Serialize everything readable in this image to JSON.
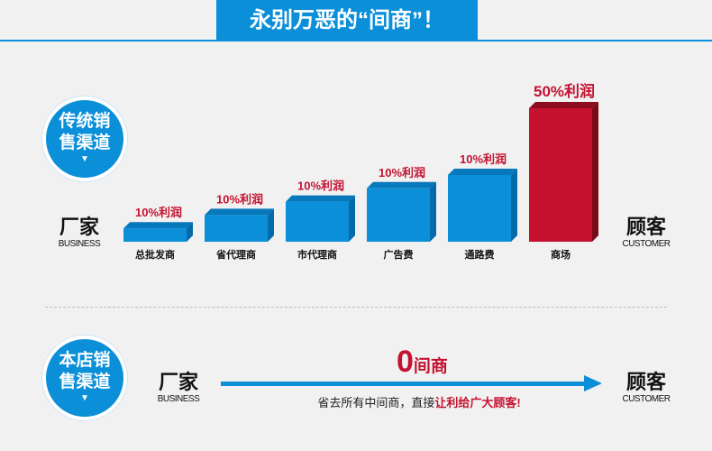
{
  "banner": {
    "title": "永别万恶的“间商”！"
  },
  "traditional": {
    "badge_line1": "传统销",
    "badge_line2": "售渠道",
    "badge_arrow": "▼"
  },
  "our_store": {
    "badge_line1": "本店销",
    "badge_line2": "售渠道",
    "badge_arrow": "▼"
  },
  "left_party": {
    "cn": "厂家",
    "en": "BUSINESS"
  },
  "right_party": {
    "cn": "顾客",
    "en": "CUSTOMER"
  },
  "direct": {
    "zero_num": "0",
    "zero_text": "间商",
    "note_plain": "省去所有中间商，直接",
    "note_highlight": "让利给广大顾客!"
  },
  "colors": {
    "blue": "#0b8fd9",
    "red": "#c41230",
    "label_red": "#c41230"
  },
  "chart_data": {
    "type": "bar",
    "categories": [
      "总批发商",
      "省代理商",
      "市代理商",
      "广告费",
      "通路费",
      "商场"
    ],
    "values": [
      10,
      20,
      30,
      40,
      50,
      100
    ],
    "value_labels": [
      "10%利润",
      "10%利润",
      "10%利润",
      "10%利润",
      "10%利润",
      "50%利润"
    ],
    "highlight_index": 5,
    "xlabel": "",
    "ylabel": ""
  }
}
